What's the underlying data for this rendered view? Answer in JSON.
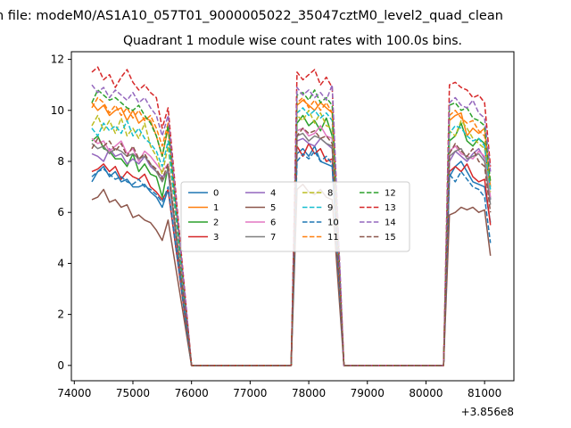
{
  "chart_data": {
    "type": "line",
    "suptitle": "n file: modeM0/AS1A10_057T01_9000005022_35047cztM0_level2_quad_clean",
    "title": "Quadrant 1 module wise count rates with 100.0s bins.",
    "xlabel": "",
    "ylabel": "",
    "x_offset_label": "+3.856e8",
    "x_unit_note": "x values are offsets from 3.856e8",
    "xlim": [
      73950,
      81500
    ],
    "ylim": [
      -0.6,
      12.3
    ],
    "x_ticks": [
      74000,
      75000,
      76000,
      77000,
      78000,
      79000,
      80000,
      81000
    ],
    "x_tick_labels": [
      "74000",
      "75000",
      "76000",
      "77000",
      "78000",
      "79000",
      "80000",
      "81000"
    ],
    "y_ticks": [
      0,
      2,
      4,
      6,
      8,
      10,
      12
    ],
    "y_tick_labels": [
      "0",
      "2",
      "4",
      "6",
      "8",
      "10",
      "12"
    ],
    "grid": false,
    "legend_position": "center",
    "legend_columns": 4,
    "segments": [
      {
        "x_start": 74300,
        "step": 100,
        "count": 14
      },
      {
        "x_start": 77800,
        "step": 100,
        "count": 7
      },
      {
        "x_start": 80400,
        "step": 100,
        "count": 8
      }
    ],
    "series": [
      {
        "name": "0",
        "color": "#1f77b4",
        "dash": "solid",
        "high": [
          [
            7.2,
            7.6,
            7.8,
            7.4,
            7.6,
            7.2,
            7.3,
            7.0,
            7.0,
            7.1,
            6.8,
            6.6,
            6.2,
            6.9
          ],
          [
            8.3,
            8.5,
            8.2,
            8.6,
            8.0,
            7.9,
            7.8
          ],
          [
            7.4,
            7.8,
            8.0,
            7.6,
            7.2,
            7.1,
            7.0,
            5.6
          ]
        ]
      },
      {
        "name": "1",
        "color": "#ff7f0e",
        "dash": "solid",
        "high": [
          [
            10.3,
            10.0,
            10.2,
            9.8,
            10.0,
            10.1,
            9.6,
            10.0,
            9.5,
            9.7,
            9.6,
            9.0,
            8.2,
            9.3
          ],
          [
            10.2,
            10.4,
            10.2,
            10.0,
            10.3,
            10.1,
            9.9
          ],
          [
            9.6,
            9.8,
            9.9,
            9.0,
            9.3,
            9.1,
            9.3,
            7.0
          ]
        ]
      },
      {
        "name": "2",
        "color": "#2ca02c",
        "dash": "solid",
        "high": [
          [
            8.8,
            9.0,
            8.5,
            8.4,
            8.1,
            8.1,
            7.8,
            8.3,
            7.6,
            7.9,
            7.5,
            7.4,
            6.6,
            7.8
          ],
          [
            9.5,
            9.8,
            9.4,
            9.6,
            9.2,
            9.7,
            9.0
          ],
          [
            8.8,
            9.0,
            9.5,
            8.8,
            8.6,
            8.9,
            8.7,
            6.5
          ]
        ]
      },
      {
        "name": "3",
        "color": "#d62728",
        "dash": "solid",
        "high": [
          [
            7.6,
            7.7,
            7.9,
            7.6,
            7.8,
            7.3,
            7.6,
            7.4,
            7.3,
            7.5,
            7.0,
            6.8,
            6.5,
            6.9
          ],
          [
            8.6,
            8.2,
            8.7,
            8.3,
            8.5,
            8.0,
            8.1
          ],
          [
            7.6,
            7.8,
            7.6,
            7.9,
            7.4,
            7.2,
            7.3,
            5.5
          ]
        ]
      },
      {
        "name": "4",
        "color": "#9467bd",
        "dash": "solid",
        "high": [
          [
            8.3,
            8.2,
            8.0,
            8.5,
            8.2,
            8.3,
            7.9,
            8.1,
            7.9,
            8.2,
            7.8,
            7.6,
            7.4,
            7.6
          ],
          [
            8.8,
            8.9,
            8.7,
            8.6,
            8.9,
            8.7,
            8.5
          ],
          [
            8.0,
            8.4,
            8.2,
            8.0,
            8.3,
            8.5,
            8.1,
            6.5
          ]
        ]
      },
      {
        "name": "5",
        "color": "#8c564b",
        "dash": "solid",
        "high": [
          [
            6.5,
            6.6,
            6.9,
            6.4,
            6.5,
            6.2,
            6.3,
            5.8,
            5.9,
            5.7,
            5.6,
            5.3,
            4.9,
            5.7
          ],
          [
            6.9,
            7.1,
            6.8,
            6.7,
            6.9,
            6.6,
            6.5
          ],
          [
            5.9,
            6.0,
            6.2,
            6.1,
            6.2,
            6.0,
            6.1,
            4.3
          ]
        ]
      },
      {
        "name": "6",
        "color": "#e377c2",
        "dash": "solid",
        "high": [
          [
            8.9,
            8.7,
            8.8,
            8.4,
            8.6,
            8.8,
            8.3,
            8.5,
            8.0,
            8.4,
            8.2,
            7.9,
            7.6,
            7.9
          ],
          [
            9.2,
            9.3,
            9.0,
            9.1,
            9.4,
            9.0,
            8.9
          ],
          [
            8.4,
            8.6,
            8.3,
            8.2,
            8.1,
            8.4,
            8.2,
            6.6
          ]
        ]
      },
      {
        "name": "7",
        "color": "#7f7f7f",
        "dash": "solid",
        "high": [
          [
            8.7,
            8.5,
            8.6,
            8.3,
            8.5,
            8.4,
            8.2,
            8.3,
            8.1,
            8.2,
            7.9,
            7.6,
            7.2,
            7.7
          ],
          [
            9.0,
            9.1,
            8.8,
            9.0,
            8.9,
            8.7,
            8.6
          ],
          [
            8.2,
            8.4,
            8.5,
            8.1,
            8.2,
            8.3,
            8.0,
            6.3
          ]
        ]
      },
      {
        "name": "8",
        "color": "#bcbd22",
        "dash": "dashed",
        "high": [
          [
            9.4,
            9.8,
            9.2,
            9.6,
            9.1,
            9.7,
            9.0,
            9.3,
            8.9,
            9.5,
            8.6,
            8.2,
            7.5,
            8.6
          ],
          [
            9.8,
            9.6,
            10.0,
            9.5,
            9.9,
            9.4,
            9.3
          ],
          [
            9.2,
            9.0,
            9.6,
            9.3,
            8.9,
            8.7,
            8.5,
            6.8
          ]
        ]
      },
      {
        "name": "9",
        "color": "#17becf",
        "dash": "dashed",
        "high": [
          [
            9.3,
            9.0,
            9.5,
            9.2,
            9.4,
            9.1,
            9.6,
            9.0,
            9.3,
            8.9,
            8.7,
            8.4,
            7.8,
            8.8
          ],
          [
            9.9,
            10.1,
            9.8,
            10.0,
            9.7,
            9.9,
            9.6
          ],
          [
            9.1,
            9.4,
            9.3,
            9.0,
            8.8,
            8.9,
            8.6,
            6.9
          ]
        ]
      },
      {
        "name": "10",
        "color": "#1f77b4",
        "dash": "dashed",
        "high": [
          [
            7.4,
            7.6,
            7.7,
            7.5,
            7.3,
            7.4,
            7.2,
            7.1,
            7.3,
            7.0,
            6.9,
            6.7,
            6.4,
            7.0
          ],
          [
            8.0,
            8.3,
            8.1,
            8.4,
            8.0,
            8.2,
            7.9
          ],
          [
            7.5,
            7.2,
            7.6,
            7.3,
            7.0,
            6.9,
            6.6,
            4.8
          ]
        ]
      },
      {
        "name": "11",
        "color": "#ff7f0e",
        "dash": "dashed",
        "high": [
          [
            10.1,
            10.5,
            10.3,
            9.9,
            10.2,
            9.8,
            10.1,
            9.7,
            10.0,
            9.6,
            9.8,
            9.3,
            8.6,
            9.5
          ],
          [
            10.3,
            10.5,
            10.1,
            10.4,
            10.0,
            10.3,
            9.9
          ],
          [
            9.8,
            10.0,
            9.7,
            9.5,
            9.6,
            9.2,
            9.0,
            7.2
          ]
        ]
      },
      {
        "name": "12",
        "color": "#2ca02c",
        "dash": "dashed",
        "high": [
          [
            10.3,
            10.8,
            10.6,
            10.4,
            10.5,
            10.3,
            10.1,
            10.0,
            10.2,
            9.8,
            9.5,
            9.0,
            8.2,
            9.4
          ],
          [
            10.6,
            10.7,
            10.4,
            10.8,
            10.3,
            10.5,
            10.2
          ],
          [
            10.2,
            10.3,
            10.0,
            10.1,
            9.7,
            9.6,
            9.4,
            7.2
          ]
        ]
      },
      {
        "name": "13",
        "color": "#d62728",
        "dash": "dashed",
        "high": [
          [
            11.5,
            11.7,
            11.2,
            11.4,
            10.9,
            11.3,
            11.6,
            11.1,
            10.8,
            11.0,
            10.7,
            10.5,
            9.3,
            10.1
          ],
          [
            11.5,
            11.2,
            11.4,
            11.6,
            11.0,
            11.3,
            10.9
          ],
          [
            11.0,
            11.1,
            10.9,
            10.8,
            10.5,
            10.6,
            10.3,
            7.8
          ]
        ]
      },
      {
        "name": "14",
        "color": "#9467bd",
        "dash": "dashed",
        "high": [
          [
            11.0,
            10.7,
            10.9,
            10.5,
            10.8,
            10.6,
            10.4,
            10.7,
            10.3,
            10.5,
            10.1,
            9.8,
            9.0,
            9.8
          ],
          [
            10.9,
            10.6,
            10.8,
            10.5,
            10.7,
            10.4,
            11.0
          ],
          [
            10.3,
            10.5,
            10.2,
            10.1,
            10.4,
            9.9,
            9.7,
            7.6
          ]
        ]
      },
      {
        "name": "15",
        "color": "#8c564b",
        "dash": "dashed",
        "high": [
          [
            8.5,
            8.9,
            8.6,
            8.8,
            8.4,
            8.7,
            8.2,
            8.6,
            8.1,
            8.3,
            7.9,
            7.7,
            7.3,
            7.9
          ],
          [
            9.0,
            9.3,
            9.1,
            9.2,
            8.9,
            9.0,
            8.7
          ],
          [
            8.3,
            8.7,
            8.4,
            8.2,
            8.5,
            8.0,
            7.8,
            6.0
          ]
        ]
      }
    ]
  }
}
